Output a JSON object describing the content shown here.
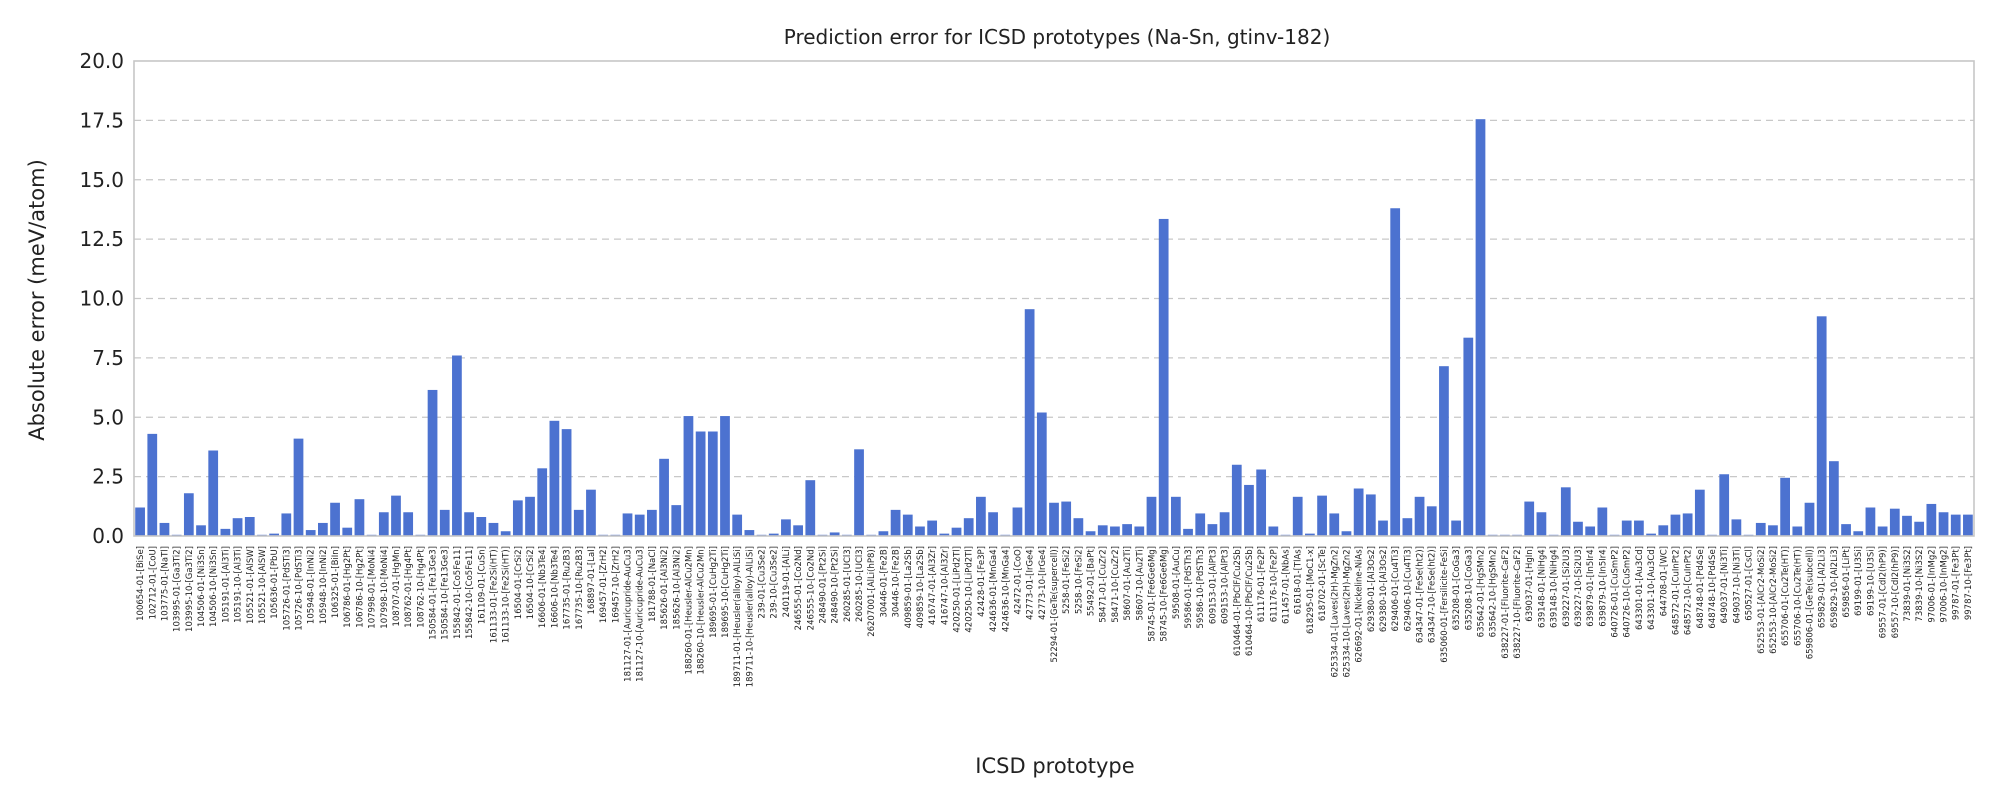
{
  "chart_data": {
    "type": "bar",
    "title": "Prediction error for ICSD prototypes (Na-Sn, gtinv-182)",
    "xlabel": "ICSD prototype",
    "ylabel": "Absolute error (meV/atom)",
    "ylim": [
      0,
      20
    ],
    "yticks": [
      "0.0",
      "2.5",
      "5.0",
      "7.5",
      "10.0",
      "12.5",
      "15.0",
      "17.5",
      "20.0"
    ],
    "grid": "y, dashed",
    "bar_color": "#4C72D0",
    "categories": [
      "100654-01-[BiSe]",
      "102712-01-[CoU]",
      "103775-01-[NaTl]",
      "103995-01-[Ga3Ti2]",
      "103995-10-[Ga3Ti2]",
      "104506-01-[Ni3Sn]",
      "104506-10-[Ni3Sn]",
      "105191-01-[Al3Ti]",
      "105191-10-[Al3Ti]",
      "105521-01-[AlSW]",
      "105521-10-[AlSW]",
      "105636-01-[PbU]",
      "105726-01-[PdSTi3]",
      "105726-10-[PdSTi3]",
      "105948-01-[InNi2]",
      "105948-10-[InNi2]",
      "106325-01-[BiIn]",
      "106786-01-[Hg2Pt]",
      "106786-10-[Hg2Pt]",
      "107998-01-[MoNi4]",
      "107998-10-[MoNi4]",
      "108707-01-[HgMn]",
      "108762-01-[Hg4Pt]",
      "108762-10-[Hg4Pt]",
      "150584-01-[Fe13Ge3]",
      "150584-10-[Fe13Ge3]",
      "155842-01-[Co5Fe11]",
      "155842-10-[Co5Fe11]",
      "161109-01-[CuSn]",
      "161133-01-[Fe2Si(HT)]",
      "161133-10-[Fe2Si(HT)]",
      "16504-01-[CrSi2]",
      "16504-10-[CrSi2]",
      "16606-01-[Nb3Te4]",
      "16606-10-[Nb3Te4]",
      "167735-01-[Ru2B3]",
      "167735-10-[Ru2B3]",
      "168897-01-[LaI]",
      "169457-01-[ZrH2]",
      "169457-10-[ZrH2]",
      "181127-01-[Auricupride-AuCu3]",
      "181127-10-[Auricupride-AuCu3]",
      "181788-01-[NaCl]",
      "185626-01-[Al3Ni2]",
      "185626-10-[Al3Ni2]",
      "188260-01-[Heusler-AlCu2Mn]",
      "188260-10-[Heusler-AlCu2Mn]",
      "189695-01-[CuHg2Ti]",
      "189695-10-[CuHg2Ti]",
      "189711-01-[Heusler(alloy)-AlLiSi]",
      "189711-10-[Heusler(alloy)-AlLiSi]",
      "239-01-[Cu3Se2]",
      "239-10-[Cu3Se2]",
      "240119-01-[AlLi]",
      "246555-01-[Co2Nd]",
      "246555-10-[Co2Nd]",
      "248490-01-[Pt2Si]",
      "248490-10-[Pt2Si]",
      "260285-01-[UCl3]",
      "260285-10-[UCl3]",
      "26207001-[AlLi(hP8)]",
      "30446-01-[Fe2B]",
      "30446-10-[Fe2B]",
      "409859-01-[La2Sb]",
      "409859-10-[La2Sb]",
      "416747-01-[Al3Zr]",
      "416747-10-[Al3Zr]",
      "420250-01-[LiPd2Tl]",
      "420250-10-[LiPd2Tl]",
      "42428-01-[Fe3P]",
      "424636-01-[MnGa4]",
      "424636-10-[MnGa4]",
      "42472-01-[CoO]",
      "42773-01-[IrGe4]",
      "42773-10-[IrGe4]",
      "52294-01-[GeTe(supercell)]",
      "5258-01-[FeSi2]",
      "5258-10-[FeSi2]",
      "55492-01-[BaPt]",
      "58471-01-[CuZr2]",
      "58471-10-[CuZr2]",
      "58607-01-[Au2Ti]",
      "58607-10-[Au2Ti]",
      "58745-01-[Fe6Ge6Mg]",
      "58745-10-[Fe6Ge6Mg]",
      "59508-01-[AuCu]",
      "59586-01-[PdSTh3]",
      "59586-10-[PdSTh3]",
      "609153-01-[AlPt3]",
      "609153-10-[AlPt3]",
      "610464-01-[PbClF/Cu2Sb]",
      "610464-10-[PbClF/Cu2Sb]",
      "611176-01-[Fe2P]",
      "611176-10-[Fe2P]",
      "611457-01-[NbAs]",
      "61618-01-[TlAs]",
      "618295-01-[MoC1-x]",
      "618702-01-[ScTe]",
      "625334-01-[Laves(2H)-MgZn2]",
      "625334-10-[Laves(2H)-MgZn2]",
      "626692-01-[Nickeline-NiAs]",
      "629380-01-[Al3Os2]",
      "629380-10-[Al3Os2]",
      "629406-01-[Cu4Ti3]",
      "629406-10-[Cu4Ti3]",
      "634347-01-[FeSe(ht2)]",
      "634347-10-[FeSe(ht2)]",
      "635060-01-[Fersilicite-FeSi]",
      "635208-01-[CoGa3]",
      "635208-10-[CoGa3]",
      "635642-01-[HgSMn2]",
      "635642-10-[HgSMn2]",
      "638227-01-[Fluorite-CaF2]",
      "638227-10-[Fluorite-CaF2]",
      "639037-01-[HgIn]",
      "639148-01-[NiHg4]",
      "639148-10-[NiHg4]",
      "639227-01-[Si2U3]",
      "639227-10-[Si2U3]",
      "639879-01-[In5Ir4]",
      "639879-10-[In5Ir4]",
      "640726-01-[CuSmP2]",
      "640726-10-[CuSmP2]",
      "643301-01-[Au3Cd]",
      "643301-10-[Au3Cd]",
      "644708-01-[WC]",
      "648572-01-[CuInPt2]",
      "648572-10-[CuInPt2]",
      "648748-01-[Pd4Se]",
      "648748-10-[Pd4Se]",
      "649037-01-[Ni3Ti]",
      "649037-10-[Ni3Ti]",
      "650527-01-[CsCl]",
      "652553-01-[AlCr2-MoSi2]",
      "652553-10-[AlCr2-MoSi2]",
      "655706-01-[Cu2Te(HT)]",
      "655706-10-[Cu2Te(HT)]",
      "659806-01-[GeTe(subcell)]",
      "659829-01-[Al2Li3]",
      "659829-10-[Al2Li3]",
      "659856-01-[LiPt]",
      "69199-01-[U3Si]",
      "69199-10-[U3Si]",
      "69557-01-[CdI2(hP9)]",
      "69557-10-[CdI2(hP9)]",
      "73839-01-[Ni3S2]",
      "73839-10-[Ni3S2]",
      "97006-01-[InMg2]",
      "97006-10-[InMg2]",
      "99787-01-[Fe3Pt]",
      "99787-10-[Fe3Pt]"
    ],
    "values": [
      1.2,
      4.3,
      0.55,
      0.05,
      1.8,
      0.45,
      3.6,
      0.3,
      0.75,
      0.8,
      0.05,
      0.1,
      0.95,
      4.1,
      0.25,
      0.55,
      1.4,
      0.35,
      1.55,
      0.05,
      1.0,
      1.7,
      1.0,
      0.05,
      6.15,
      1.1,
      7.6,
      1.0,
      0.8,
      0.55,
      0.2,
      1.5,
      1.65,
      2.85,
      4.85,
      4.5,
      1.1,
      1.95,
      0.05,
      0.05,
      0.95,
      0.9,
      1.1,
      3.25,
      1.3,
      5.05,
      4.4,
      4.4,
      5.05,
      0.9,
      0.25,
      0.05,
      0.1,
      0.7,
      0.45,
      2.35,
      0.05,
      0.15,
      0.05,
      3.65,
      0.05,
      0.2,
      1.1,
      0.9,
      0.4,
      0.65,
      0.1,
      0.35,
      0.75,
      1.65,
      1.0,
      0.05,
      1.2,
      9.55,
      5.2,
      1.4,
      1.45,
      0.75,
      0.2,
      0.45,
      0.4,
      0.5,
      0.4,
      1.65,
      13.35,
      1.65,
      0.3,
      0.95,
      0.5,
      1.0,
      3.0,
      2.15,
      2.8,
      0.4,
      0.05,
      1.65,
      0.1,
      1.7,
      0.95,
      0.2,
      2.0,
      1.75,
      0.65,
      13.8,
      0.75,
      1.65,
      1.25,
      7.15,
      0.65,
      8.35,
      17.55,
      0.05,
      0.05,
      0.05,
      1.45,
      1.0,
      0.05,
      2.05,
      0.6,
      0.4,
      1.2,
      0.05,
      0.65,
      0.65,
      0.1,
      0.45,
      0.9,
      0.95,
      1.95,
      0.05,
      2.6,
      0.7,
      0.05,
      0.55,
      0.45,
      2.45,
      0.4,
      1.4,
      9.25,
      3.15,
      0.5,
      0.2,
      1.2,
      0.4,
      1.15,
      0.85,
      0.6,
      1.35,
      1.0,
      0.9,
      0.9
    ]
  }
}
